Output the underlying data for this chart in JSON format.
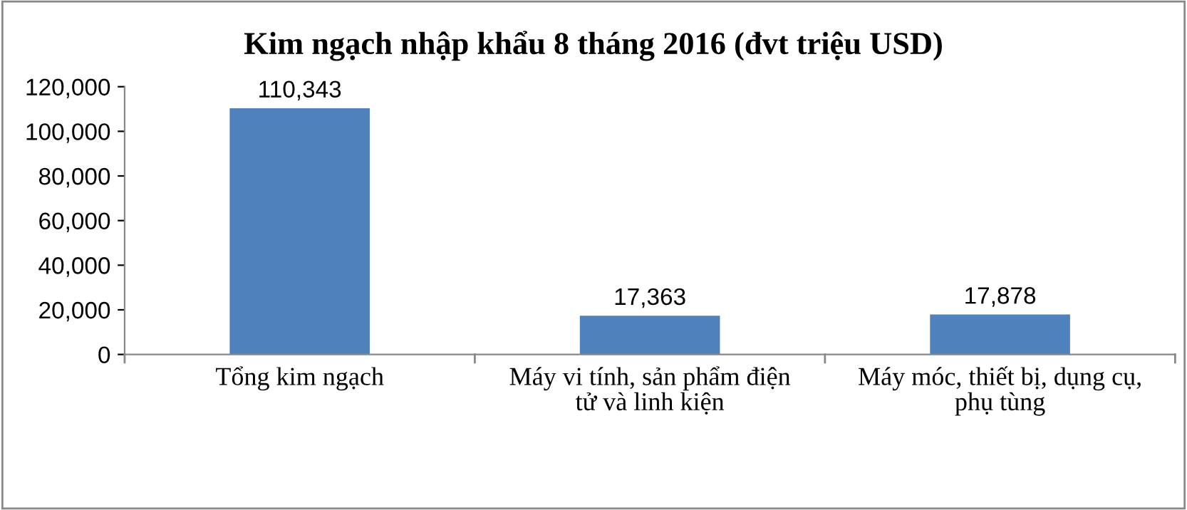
{
  "chart_data": {
    "type": "bar",
    "title": "Kim ngạch nhập khẩu 8 tháng 2016 (đvt triệu USD)",
    "categories": [
      "Tổng kim ngạch",
      "Máy vi tính, sản phẩm điện\ntử và linh kiện",
      "Máy móc, thiết bị, dụng cụ,\nphụ tùng"
    ],
    "values": [
      110343,
      17363,
      17878
    ],
    "color": "#4f81bd",
    "value_labels": [
      "110,343",
      "17,363",
      "17,878"
    ],
    "ylim": [
      0,
      120000
    ],
    "yticks": [
      0,
      {
        "value": 20000,
        "label": "20,000"
      },
      {
        "value": 40000,
        "label": "40,000"
      },
      {
        "value": 60000,
        "label": "60,000"
      },
      {
        "value": 80000,
        "label": "80,000"
      },
      {
        "value": 100000,
        "label": "100,000"
      },
      {
        "value": 120000,
        "label": "120,000"
      }
    ],
    "grid": false
  }
}
